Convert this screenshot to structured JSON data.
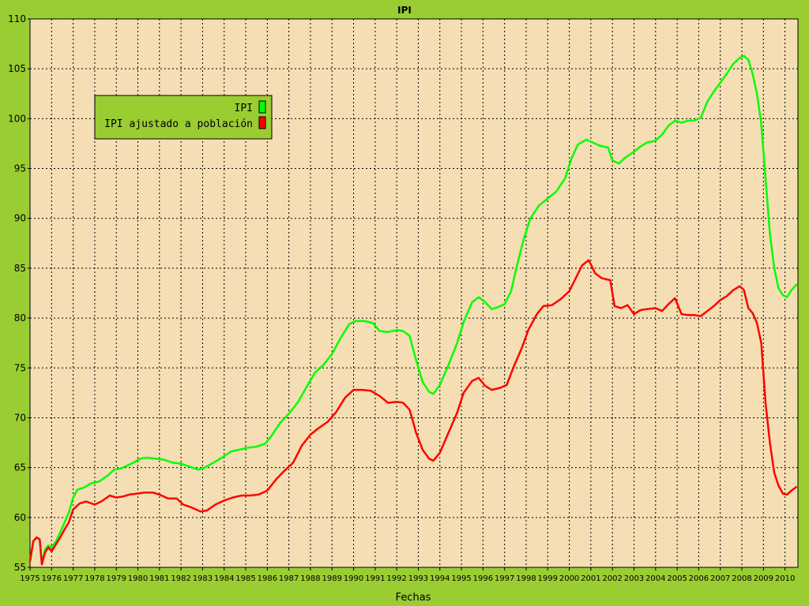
{
  "chart_data": {
    "type": "line",
    "title": "IPI",
    "xlabel": "Fechas",
    "ylabel": "",
    "xlim": [
      1975.0,
      2010.6
    ],
    "ylim": [
      55,
      110
    ],
    "y_ticks": [
      "55",
      "60",
      "65",
      "70",
      "75",
      "80",
      "85",
      "90",
      "95",
      "100",
      "105",
      "110"
    ],
    "x_ticks": [
      "1975",
      "1976",
      "1977",
      "1978",
      "1979",
      "1980",
      "1981",
      "1982",
      "1983",
      "1984",
      "1985",
      "1986",
      "1987",
      "1988",
      "1989",
      "1990",
      "1991",
      "1992",
      "1993",
      "1994",
      "1995",
      "1996",
      "1997",
      "1998",
      "1999",
      "2000",
      "2001",
      "2002",
      "2003",
      "2004",
      "2005",
      "2006",
      "2007",
      "2008",
      "2009",
      "2010"
    ],
    "grid": true,
    "legend_position": "top-left",
    "colors": {
      "figure_bg": "#9acd32",
      "plot_bg": "#f5deb3"
    },
    "series": [
      {
        "name": "IPI",
        "color": "#00ff00",
        "points": [
          [
            1975.0,
            55.6
          ],
          [
            1975.15,
            57.6
          ],
          [
            1975.3,
            58.0
          ],
          [
            1975.45,
            57.8
          ],
          [
            1975.55,
            55.3
          ],
          [
            1975.7,
            56.8
          ],
          [
            1975.85,
            57.2
          ],
          [
            1976.0,
            57.0
          ],
          [
            1976.2,
            57.6
          ],
          [
            1976.4,
            58.5
          ],
          [
            1976.6,
            59.5
          ],
          [
            1976.8,
            60.5
          ],
          [
            1977.0,
            62.0
          ],
          [
            1977.2,
            62.8
          ],
          [
            1977.5,
            63.0
          ],
          [
            1977.8,
            63.4
          ],
          [
            1978.2,
            63.6
          ],
          [
            1978.6,
            64.2
          ],
          [
            1978.9,
            64.8
          ],
          [
            1979.2,
            64.9
          ],
          [
            1979.5,
            65.2
          ],
          [
            1979.8,
            65.5
          ],
          [
            1980.1,
            65.9
          ],
          [
            1980.4,
            66.0
          ],
          [
            1980.8,
            65.9
          ],
          [
            1981.2,
            65.8
          ],
          [
            1981.6,
            65.5
          ],
          [
            1982.0,
            65.4
          ],
          [
            1982.4,
            65.1
          ],
          [
            1982.8,
            64.8
          ],
          [
            1983.1,
            65.0
          ],
          [
            1983.5,
            65.5
          ],
          [
            1983.9,
            66.0
          ],
          [
            1984.3,
            66.6
          ],
          [
            1984.7,
            66.8
          ],
          [
            1985.1,
            67.0
          ],
          [
            1985.5,
            67.1
          ],
          [
            1985.9,
            67.4
          ],
          [
            1986.2,
            68.2
          ],
          [
            1986.6,
            69.5
          ],
          [
            1987.0,
            70.4
          ],
          [
            1987.4,
            71.5
          ],
          [
            1987.8,
            73.0
          ],
          [
            1988.2,
            74.5
          ],
          [
            1988.6,
            75.3
          ],
          [
            1989.0,
            76.4
          ],
          [
            1989.4,
            78.0
          ],
          [
            1989.8,
            79.4
          ],
          [
            1990.1,
            79.7
          ],
          [
            1990.5,
            79.7
          ],
          [
            1990.9,
            79.5
          ],
          [
            1991.2,
            78.7
          ],
          [
            1991.6,
            78.6
          ],
          [
            1992.0,
            78.8
          ],
          [
            1992.3,
            78.7
          ],
          [
            1992.6,
            78.2
          ],
          [
            1992.9,
            75.8
          ],
          [
            1993.2,
            73.6
          ],
          [
            1993.5,
            72.6
          ],
          [
            1993.7,
            72.4
          ],
          [
            1994.0,
            73.3
          ],
          [
            1994.4,
            75.3
          ],
          [
            1994.8,
            77.5
          ],
          [
            1995.1,
            79.6
          ],
          [
            1995.5,
            81.6
          ],
          [
            1995.8,
            82.1
          ],
          [
            1996.1,
            81.6
          ],
          [
            1996.4,
            80.9
          ],
          [
            1996.7,
            81.1
          ],
          [
            1997.0,
            81.4
          ],
          [
            1997.3,
            82.7
          ],
          [
            1997.6,
            85.5
          ],
          [
            1997.9,
            88.0
          ],
          [
            1998.2,
            90.0
          ],
          [
            1998.6,
            91.3
          ],
          [
            1999.0,
            92.0
          ],
          [
            1999.4,
            92.7
          ],
          [
            1999.8,
            94.0
          ],
          [
            2000.1,
            96.0
          ],
          [
            2000.4,
            97.4
          ],
          [
            2000.8,
            97.9
          ],
          [
            2001.1,
            97.6
          ],
          [
            2001.4,
            97.3
          ],
          [
            2001.8,
            97.1
          ],
          [
            2002.0,
            95.8
          ],
          [
            2002.3,
            95.5
          ],
          [
            2002.6,
            96.1
          ],
          [
            2003.0,
            96.7
          ],
          [
            2003.3,
            97.2
          ],
          [
            2003.6,
            97.6
          ],
          [
            2004.0,
            97.8
          ],
          [
            2004.3,
            98.4
          ],
          [
            2004.6,
            99.3
          ],
          [
            2004.9,
            99.8
          ],
          [
            2005.2,
            99.6
          ],
          [
            2005.5,
            99.8
          ],
          [
            2005.8,
            99.8
          ],
          [
            2006.1,
            100.1
          ],
          [
            2006.4,
            101.7
          ],
          [
            2006.7,
            102.7
          ],
          [
            2007.0,
            103.6
          ],
          [
            2007.3,
            104.5
          ],
          [
            2007.6,
            105.5
          ],
          [
            2007.9,
            106.1
          ],
          [
            2008.1,
            106.3
          ],
          [
            2008.3,
            105.9
          ],
          [
            2008.5,
            104.5
          ],
          [
            2008.7,
            102.5
          ],
          [
            2008.9,
            99.5
          ],
          [
            2009.1,
            94.0
          ],
          [
            2009.3,
            88.5
          ],
          [
            2009.5,
            85.0
          ],
          [
            2009.7,
            83.0
          ],
          [
            2009.9,
            82.3
          ],
          [
            2010.1,
            82.1
          ],
          [
            2010.3,
            82.8
          ],
          [
            2010.55,
            83.4
          ]
        ]
      },
      {
        "name": "IPI ajustado a población",
        "color": "#ff0000",
        "points": [
          [
            1975.0,
            55.6
          ],
          [
            1975.15,
            57.6
          ],
          [
            1975.3,
            58.0
          ],
          [
            1975.45,
            57.8
          ],
          [
            1975.55,
            55.3
          ],
          [
            1975.7,
            56.5
          ],
          [
            1975.85,
            57.0
          ],
          [
            1976.0,
            56.6
          ],
          [
            1976.2,
            57.3
          ],
          [
            1976.4,
            58.0
          ],
          [
            1976.6,
            58.8
          ],
          [
            1976.8,
            59.5
          ],
          [
            1977.0,
            60.8
          ],
          [
            1977.3,
            61.4
          ],
          [
            1977.6,
            61.6
          ],
          [
            1978.0,
            61.3
          ],
          [
            1978.3,
            61.6
          ],
          [
            1978.7,
            62.2
          ],
          [
            1979.0,
            62.0
          ],
          [
            1979.3,
            62.1
          ],
          [
            1979.6,
            62.3
          ],
          [
            1980.0,
            62.4
          ],
          [
            1980.3,
            62.5
          ],
          [
            1980.7,
            62.5
          ],
          [
            1981.0,
            62.3
          ],
          [
            1981.4,
            61.9
          ],
          [
            1981.8,
            61.9
          ],
          [
            1982.1,
            61.3
          ],
          [
            1982.5,
            61.0
          ],
          [
            1982.9,
            60.6
          ],
          [
            1983.2,
            60.7
          ],
          [
            1983.6,
            61.3
          ],
          [
            1984.0,
            61.7
          ],
          [
            1984.4,
            62.0
          ],
          [
            1984.8,
            62.2
          ],
          [
            1985.2,
            62.2
          ],
          [
            1985.6,
            62.3
          ],
          [
            1986.0,
            62.7
          ],
          [
            1986.4,
            63.8
          ],
          [
            1986.8,
            64.7
          ],
          [
            1987.2,
            65.5
          ],
          [
            1987.6,
            67.2
          ],
          [
            1988.0,
            68.3
          ],
          [
            1988.4,
            69.0
          ],
          [
            1988.8,
            69.6
          ],
          [
            1989.2,
            70.6
          ],
          [
            1989.6,
            72.0
          ],
          [
            1990.0,
            72.8
          ],
          [
            1990.4,
            72.8
          ],
          [
            1990.8,
            72.7
          ],
          [
            1991.2,
            72.2
          ],
          [
            1991.6,
            71.5
          ],
          [
            1992.0,
            71.6
          ],
          [
            1992.3,
            71.5
          ],
          [
            1992.6,
            70.8
          ],
          [
            1992.9,
            68.5
          ],
          [
            1993.2,
            66.8
          ],
          [
            1993.5,
            65.9
          ],
          [
            1993.7,
            65.7
          ],
          [
            1994.0,
            66.5
          ],
          [
            1994.4,
            68.5
          ],
          [
            1994.8,
            70.5
          ],
          [
            1995.1,
            72.5
          ],
          [
            1995.5,
            73.7
          ],
          [
            1995.8,
            74.0
          ],
          [
            1996.1,
            73.2
          ],
          [
            1996.4,
            72.8
          ],
          [
            1996.8,
            73.0
          ],
          [
            1997.1,
            73.3
          ],
          [
            1997.4,
            75.0
          ],
          [
            1997.8,
            77.0
          ],
          [
            1998.1,
            78.8
          ],
          [
            1998.5,
            80.4
          ],
          [
            1998.8,
            81.2
          ],
          [
            1999.2,
            81.3
          ],
          [
            1999.6,
            81.9
          ],
          [
            2000.0,
            82.7
          ],
          [
            2000.3,
            84.0
          ],
          [
            2000.6,
            85.3
          ],
          [
            2000.9,
            85.8
          ],
          [
            2001.2,
            84.5
          ],
          [
            2001.5,
            84.0
          ],
          [
            2001.9,
            83.8
          ],
          [
            2002.1,
            81.2
          ],
          [
            2002.4,
            81.0
          ],
          [
            2002.7,
            81.3
          ],
          [
            2003.0,
            80.4
          ],
          [
            2003.3,
            80.8
          ],
          [
            2003.6,
            80.9
          ],
          [
            2004.0,
            81.0
          ],
          [
            2004.3,
            80.7
          ],
          [
            2004.6,
            81.4
          ],
          [
            2004.9,
            82.0
          ],
          [
            2005.2,
            80.4
          ],
          [
            2005.5,
            80.3
          ],
          [
            2005.8,
            80.3
          ],
          [
            2006.1,
            80.2
          ],
          [
            2006.4,
            80.7
          ],
          [
            2006.7,
            81.2
          ],
          [
            2007.0,
            81.8
          ],
          [
            2007.3,
            82.2
          ],
          [
            2007.6,
            82.8
          ],
          [
            2007.9,
            83.2
          ],
          [
            2008.1,
            82.8
          ],
          [
            2008.3,
            81.0
          ],
          [
            2008.5,
            80.5
          ],
          [
            2008.7,
            79.5
          ],
          [
            2008.9,
            77.5
          ],
          [
            2009.1,
            71.5
          ],
          [
            2009.3,
            67.5
          ],
          [
            2009.5,
            64.5
          ],
          [
            2009.7,
            63.2
          ],
          [
            2009.9,
            62.4
          ],
          [
            2010.1,
            62.3
          ],
          [
            2010.3,
            62.7
          ],
          [
            2010.55,
            63.1
          ]
        ]
      }
    ]
  }
}
